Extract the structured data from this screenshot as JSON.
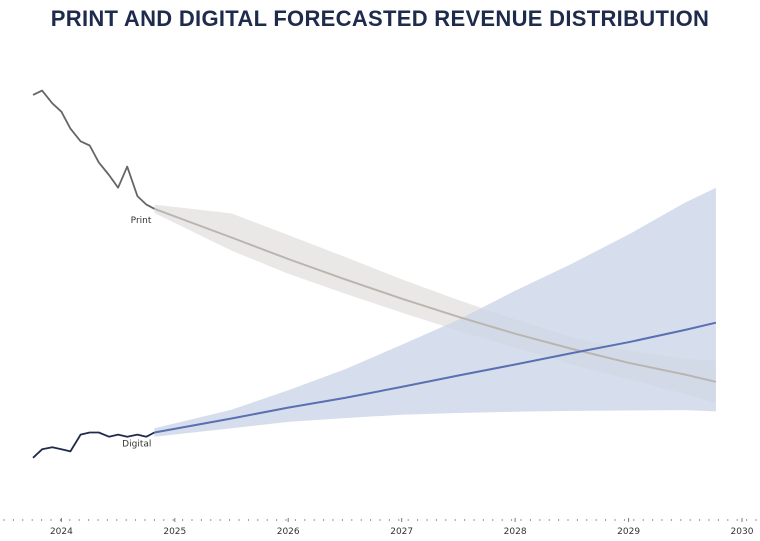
{
  "chart_data": {
    "type": "line",
    "title": "PRINT AND DIGITAL FORECASTED REVENUE DISTRIBUTION",
    "xlabel": "",
    "ylabel": "",
    "xlim": [
      2023.75,
      2030.0
    ],
    "ylim": [
      0,
      100
    ],
    "x_ticks": [
      "2024",
      "2025",
      "2026",
      "2027",
      "2028",
      "2029",
      "2030"
    ],
    "x_tick_values": [
      2024,
      2025,
      2026,
      2027,
      2028,
      2029,
      2030
    ],
    "series": [
      {
        "name": "Print",
        "label": "Print",
        "color": "#666666",
        "forecast_color": "#bbb5af",
        "band_color": "#e6e4e3",
        "actual": {
          "x": [
            2023.75,
            2023.83,
            2023.92,
            2024.0,
            2024.08,
            2024.17,
            2024.25,
            2024.33,
            2024.42,
            2024.5,
            2024.58,
            2024.67,
            2024.75,
            2024.82
          ],
          "y": [
            87,
            88,
            85,
            83,
            79,
            76,
            75,
            71,
            68,
            65,
            70,
            63,
            61,
            60
          ]
        },
        "forecast": {
          "x": [
            2024.82,
            2025.5,
            2026.0,
            2026.5,
            2027.0,
            2027.5,
            2028.0,
            2028.5,
            2029.0,
            2029.5,
            2029.77
          ],
          "y": [
            60,
            53.2,
            48.1,
            43.3,
            38.7,
            34.4,
            30.4,
            26.8,
            23.5,
            20.7,
            19
          ],
          "upper": [
            61,
            58.9,
            53.8,
            48.6,
            43.3,
            38.4,
            33.8,
            29.6,
            26.5,
            24.4,
            24
          ],
          "lower": [
            59,
            50.1,
            44.6,
            39.9,
            35.4,
            31.1,
            27.1,
            23.1,
            19.6,
            16.1,
            14
          ]
        }
      },
      {
        "name": "Digital",
        "label": "Digital",
        "color": "#1f2b4d",
        "forecast_color": "#5a70b0",
        "band_color": "#ccd6e8",
        "actual": {
          "x": [
            2023.75,
            2023.83,
            2023.92,
            2024.0,
            2024.08,
            2024.17,
            2024.25,
            2024.33,
            2024.42,
            2024.5,
            2024.58,
            2024.67,
            2024.75,
            2024.82
          ],
          "y": [
            1,
            3,
            3.5,
            3,
            2.5,
            6.5,
            7,
            7,
            6,
            6.5,
            6,
            6.5,
            6,
            7
          ]
        },
        "forecast": {
          "x": [
            2024.82,
            2025.5,
            2026.0,
            2026.5,
            2027.0,
            2027.5,
            2028.0,
            2028.5,
            2029.0,
            2029.5,
            2029.77
          ],
          "y": [
            7,
            10.3,
            12.9,
            15.2,
            17.8,
            20.5,
            23.1,
            25.8,
            28.4,
            31.3,
            33
          ],
          "upper": [
            8,
            12.4,
            17,
            22,
            27.8,
            33.7,
            40.6,
            47,
            53.9,
            61.5,
            65
          ],
          "lower": [
            6,
            8,
            9.5,
            10.4,
            11.2,
            11.6,
            11.9,
            12.1,
            12.2,
            12.3,
            12
          ]
        }
      }
    ]
  }
}
